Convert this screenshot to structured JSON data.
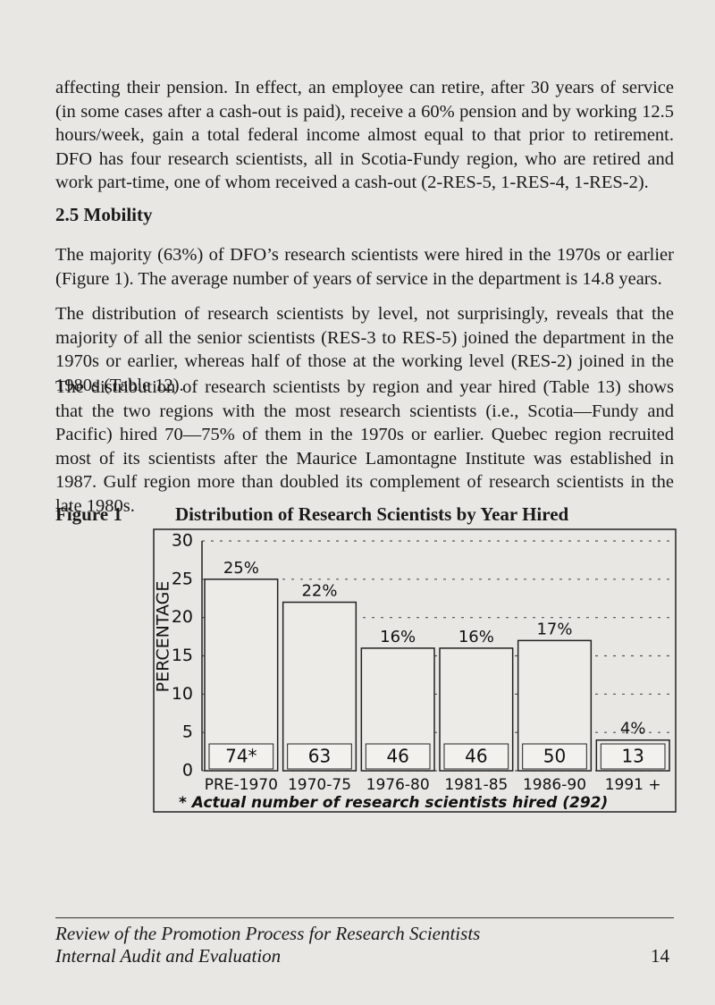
{
  "body": {
    "paragraphs_top": [
      "affecting their pension. In effect, an employee can retire, after 30 years of service (in some cases after a cash-out is paid), receive a 60% pension and by working 12.5 hours/week, gain a total federal income almost equal to that prior to retirement. DFO has four research scientists, all in Scotia-Fundy region, who are retired and work part-time, one of whom received a cash-out (2-RES-5, 1-RES-4, 1-RES-2)."
    ],
    "section_heading": "2.5 Mobility",
    "paragraphs": [
      "The majority (63%) of DFO’s research scientists were hired in the 1970s or earlier (Figure 1). The average number of years of service in the department is 14.8 years.",
      "The distribution of research scientists by level, not surprisingly, reveals that the majority of all the senior scientists (RES-3 to RES-5) joined the department in the 1970s or earlier, whereas half of those at the working level (RES-2) joined in the 1980s (Table 12).",
      "The distribution of research scientists by region and year hired (Table 13) shows that the two regions with the most research scientists (i.e., Scotia—Fundy and Pacific) hired 70—75% of them in the 1970s or earlier. Quebec region recruited most of its scientists after the Maurice Lamontagne Institute was established in 1987. Gulf region more than doubled its complement of research scientists in the late 1980s."
    ]
  },
  "figure": {
    "type": "bar",
    "label": "Figure 1",
    "title": "Distribution of Research Scientists by Year Hired",
    "y_axis_label": "PERCENTAGE",
    "categories": [
      "PRE-1970",
      "1970-75",
      "1976-80",
      "1981-85",
      "1986-90",
      "1991 +"
    ],
    "values": [
      25,
      22,
      16,
      16,
      17,
      4
    ],
    "value_labels": [
      "25%",
      "22%",
      "16%",
      "16%",
      "17%",
      "4%"
    ],
    "counts": [
      "74*",
      "63",
      "46",
      "46",
      "50",
      "13"
    ],
    "ylim": [
      0,
      30
    ],
    "yticks": [
      0,
      5,
      10,
      15,
      20,
      25,
      30
    ],
    "grid": true,
    "note": "* Actual number of research scientists hired (292)"
  },
  "footer": {
    "title": "Review of the Promotion Process for Research Scientists",
    "subtitle": "Internal Audit and Evaluation",
    "page_number": "14"
  }
}
